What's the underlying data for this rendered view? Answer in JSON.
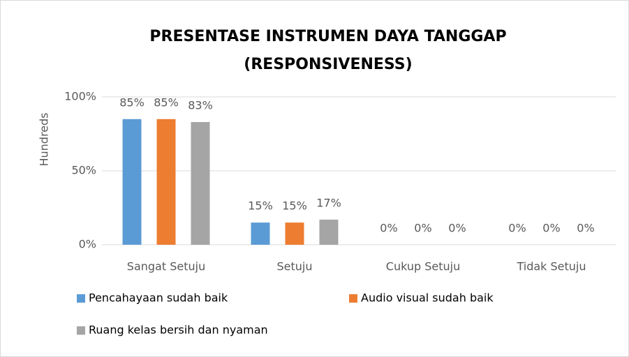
{
  "chart_data": {
    "type": "bar",
    "title": [
      "PRESENTASE INSTRUMEN DAYA TANGGAP",
      "(RESPONSIVENESS)"
    ],
    "y_label": "Hundreds",
    "categories": [
      "Sangat Setuju",
      "Setuju",
      "Cukup Setuju",
      "Tidak Setuju"
    ],
    "series": [
      {
        "name": "Pencahayaan sudah baik",
        "color": "#5b9bd5",
        "values": [
          85,
          15,
          0,
          0
        ],
        "value_labels": [
          "85%",
          "15%",
          "0%",
          "0%"
        ]
      },
      {
        "name": "Audio visual sudah baik",
        "color": "#ed7d31",
        "values": [
          85,
          15,
          0,
          0
        ],
        "value_labels": [
          "85%",
          "15%",
          "0%",
          "0%"
        ]
      },
      {
        "name": "Ruang kelas bersih dan nyaman",
        "color": "#a5a5a5",
        "values": [
          83,
          17,
          0,
          0
        ],
        "value_labels": [
          "83%",
          "17%",
          "0%",
          "0%"
        ]
      }
    ],
    "ylim": [
      0,
      100
    ],
    "yticks": [
      {
        "value": 0,
        "label": "0%"
      },
      {
        "value": 50,
        "label": "50%"
      },
      {
        "value": 100,
        "label": "100%"
      }
    ],
    "grid": true,
    "legend": "bottom"
  }
}
